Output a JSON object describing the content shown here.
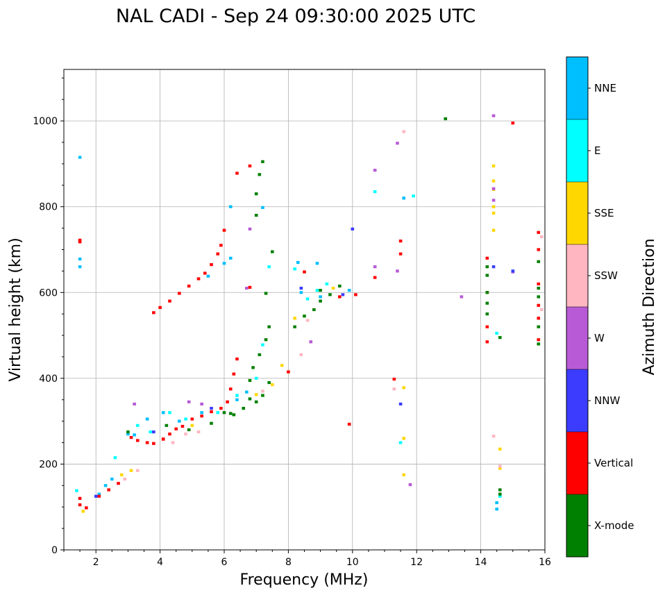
{
  "chart_data": {
    "type": "scatter",
    "title": "NAL CADI - Sep 24 09:30:00 2025 UTC",
    "xlabel": "Frequency (MHz)",
    "ylabel": "Virtual height (km)",
    "xlim": [
      1,
      16
    ],
    "ylim": [
      0,
      1120
    ],
    "xticks": [
      2,
      4,
      6,
      8,
      10,
      12,
      14,
      16
    ],
    "yticks": [
      0,
      200,
      400,
      600,
      800,
      1000
    ],
    "grid": true,
    "colorbar": {
      "title": "Azimuth Direction",
      "categories": [
        {
          "name": "X-mode",
          "color": "#008000"
        },
        {
          "name": "Vertical",
          "color": "#ff0000"
        },
        {
          "name": "NNW",
          "color": "#3c3cff"
        },
        {
          "name": "W",
          "color": "#b85ad6"
        },
        {
          "name": "SSW",
          "color": "#ffb6c1"
        },
        {
          "name": "SSE",
          "color": "#ffd700"
        },
        {
          "name": "E",
          "color": "#00ffff"
        },
        {
          "name": "NNE",
          "color": "#00bfff"
        }
      ]
    },
    "series": [
      {
        "name": "NNE",
        "points": [
          [
            1.5,
            915
          ],
          [
            1.5,
            678
          ],
          [
            1.5,
            660
          ],
          [
            2.1,
            130
          ],
          [
            2.3,
            150
          ],
          [
            2.5,
            165
          ],
          [
            3.0,
            270
          ],
          [
            3.2,
            268
          ],
          [
            3.6,
            305
          ],
          [
            4.1,
            320
          ],
          [
            4.6,
            300
          ],
          [
            5.3,
            320
          ],
          [
            5.5,
            638
          ],
          [
            6.0,
            668
          ],
          [
            6.2,
            680
          ],
          [
            6.2,
            800
          ],
          [
            6.4,
            350
          ],
          [
            6.7,
            368
          ],
          [
            7.2,
            798
          ],
          [
            8.3,
            670
          ],
          [
            8.4,
            600
          ],
          [
            8.9,
            668
          ],
          [
            9.0,
            590
          ],
          [
            9.9,
            605
          ],
          [
            11.6,
            820
          ],
          [
            14.5,
            110
          ],
          [
            14.5,
            95
          ],
          [
            15.0,
            650
          ]
        ]
      },
      {
        "name": "E",
        "points": [
          [
            1.4,
            138
          ],
          [
            2.6,
            215
          ],
          [
            3.3,
            290
          ],
          [
            3.7,
            275
          ],
          [
            4.3,
            320
          ],
          [
            4.8,
            305
          ],
          [
            5.8,
            320
          ],
          [
            6.4,
            360
          ],
          [
            7.0,
            400
          ],
          [
            7.2,
            478
          ],
          [
            7.4,
            660
          ],
          [
            8.2,
            655
          ],
          [
            8.6,
            585
          ],
          [
            8.9,
            605
          ],
          [
            9.2,
            620
          ],
          [
            10.7,
            835
          ],
          [
            11.5,
            250
          ],
          [
            11.9,
            825
          ],
          [
            14.5,
            505
          ],
          [
            14.6,
            125
          ]
        ]
      },
      {
        "name": "SSE",
        "points": [
          [
            1.6,
            90
          ],
          [
            2.8,
            175
          ],
          [
            3.1,
            185
          ],
          [
            5.0,
            290
          ],
          [
            7.0,
            362
          ],
          [
            7.5,
            385
          ],
          [
            7.8,
            430
          ],
          [
            8.2,
            540
          ],
          [
            9.4,
            610
          ],
          [
            11.6,
            378
          ],
          [
            11.6,
            260
          ],
          [
            11.6,
            175
          ],
          [
            14.4,
            895
          ],
          [
            14.4,
            860
          ],
          [
            14.4,
            840
          ],
          [
            14.4,
            800
          ],
          [
            14.4,
            785
          ],
          [
            14.4,
            745
          ],
          [
            14.6,
            190
          ],
          [
            14.6,
            235
          ]
        ]
      },
      {
        "name": "SSW",
        "points": [
          [
            2.9,
            165
          ],
          [
            3.3,
            185
          ],
          [
            4.1,
            260
          ],
          [
            4.4,
            250
          ],
          [
            4.8,
            270
          ],
          [
            5.2,
            275
          ],
          [
            7.2,
            370
          ],
          [
            8.4,
            455
          ],
          [
            8.6,
            535
          ],
          [
            11.3,
            375
          ],
          [
            11.6,
            975
          ],
          [
            14.4,
            265
          ],
          [
            14.6,
            195
          ],
          [
            15.9,
            730
          ],
          [
            15.9,
            560
          ]
        ]
      },
      {
        "name": "W",
        "points": [
          [
            3.2,
            340
          ],
          [
            4.9,
            345
          ],
          [
            5.3,
            340
          ],
          [
            6.7,
            610
          ],
          [
            6.8,
            748
          ],
          [
            8.7,
            485
          ],
          [
            10.7,
            885
          ],
          [
            10.7,
            660
          ],
          [
            11.4,
            948
          ],
          [
            11.4,
            650
          ],
          [
            11.8,
            152
          ],
          [
            13.4,
            590
          ],
          [
            14.4,
            1012
          ],
          [
            14.4,
            842
          ],
          [
            14.4,
            815
          ],
          [
            15.0,
            648
          ]
        ]
      },
      {
        "name": "NNW",
        "points": [
          [
            2.0,
            125
          ],
          [
            3.8,
            275
          ],
          [
            5.6,
            330
          ],
          [
            8.4,
            610
          ],
          [
            9.7,
            595
          ],
          [
            10.0,
            748
          ],
          [
            11.5,
            340
          ],
          [
            14.4,
            660
          ],
          [
            15.0,
            650
          ]
        ]
      },
      {
        "name": "Vertical",
        "points": [
          [
            1.5,
            722
          ],
          [
            1.5,
            718
          ],
          [
            1.5,
            120
          ],
          [
            1.5,
            105
          ],
          [
            1.7,
            98
          ],
          [
            2.1,
            125
          ],
          [
            2.4,
            140
          ],
          [
            2.7,
            155
          ],
          [
            3.1,
            262
          ],
          [
            3.3,
            255
          ],
          [
            3.6,
            250
          ],
          [
            3.8,
            248
          ],
          [
            4.1,
            258
          ],
          [
            4.3,
            270
          ],
          [
            4.5,
            282
          ],
          [
            4.7,
            288
          ],
          [
            5.0,
            305
          ],
          [
            5.3,
            312
          ],
          [
            5.6,
            322
          ],
          [
            5.9,
            330
          ],
          [
            6.1,
            345
          ],
          [
            6.2,
            375
          ],
          [
            6.3,
            410
          ],
          [
            6.4,
            445
          ],
          [
            3.8,
            553
          ],
          [
            4.0,
            565
          ],
          [
            4.3,
            580
          ],
          [
            4.6,
            598
          ],
          [
            4.9,
            615
          ],
          [
            5.2,
            632
          ],
          [
            5.4,
            645
          ],
          [
            5.6,
            665
          ],
          [
            5.8,
            690
          ],
          [
            5.9,
            710
          ],
          [
            6.0,
            745
          ],
          [
            6.4,
            878
          ],
          [
            6.8,
            612
          ],
          [
            6.8,
            895
          ],
          [
            8.0,
            415
          ],
          [
            8.5,
            648
          ],
          [
            9.6,
            590
          ],
          [
            9.9,
            293
          ],
          [
            10.1,
            595
          ],
          [
            10.7,
            635
          ],
          [
            11.3,
            398
          ],
          [
            11.5,
            720
          ],
          [
            11.5,
            690
          ],
          [
            14.2,
            680
          ],
          [
            14.2,
            600
          ],
          [
            14.2,
            520
          ],
          [
            14.2,
            485
          ],
          [
            15.0,
            995
          ],
          [
            15.8,
            740
          ],
          [
            15.8,
            700
          ],
          [
            15.8,
            620
          ],
          [
            15.8,
            570
          ],
          [
            15.8,
            540
          ],
          [
            15.8,
            490
          ]
        ]
      },
      {
        "name": "X-mode",
        "points": [
          [
            3.0,
            275
          ],
          [
            4.2,
            290
          ],
          [
            4.9,
            280
          ],
          [
            5.6,
            295
          ],
          [
            6.0,
            320
          ],
          [
            6.3,
            315
          ],
          [
            6.6,
            330
          ],
          [
            6.8,
            352
          ],
          [
            7.0,
            345
          ],
          [
            7.2,
            360
          ],
          [
            7.4,
            390
          ],
          [
            6.8,
            395
          ],
          [
            6.9,
            425
          ],
          [
            7.1,
            455
          ],
          [
            7.3,
            490
          ],
          [
            7.4,
            520
          ],
          [
            8.2,
            520
          ],
          [
            8.5,
            545
          ],
          [
            8.8,
            560
          ],
          [
            9.0,
            580
          ],
          [
            9.3,
            595
          ],
          [
            9.6,
            615
          ],
          [
            6.2,
            318
          ],
          [
            7.0,
            780
          ],
          [
            7.0,
            830
          ],
          [
            7.2,
            905
          ],
          [
            7.1,
            875
          ],
          [
            7.5,
            695
          ],
          [
            7.3,
            598
          ],
          [
            9.0,
            605
          ],
          [
            12.9,
            1005
          ],
          [
            14.2,
            660
          ],
          [
            14.2,
            640
          ],
          [
            14.2,
            600
          ],
          [
            14.2,
            575
          ],
          [
            14.2,
            550
          ],
          [
            14.6,
            130
          ],
          [
            14.6,
            140
          ],
          [
            14.6,
            495
          ],
          [
            15.8,
            672
          ],
          [
            15.8,
            610
          ],
          [
            15.8,
            590
          ],
          [
            15.8,
            520
          ],
          [
            15.8,
            480
          ]
        ]
      }
    ]
  }
}
